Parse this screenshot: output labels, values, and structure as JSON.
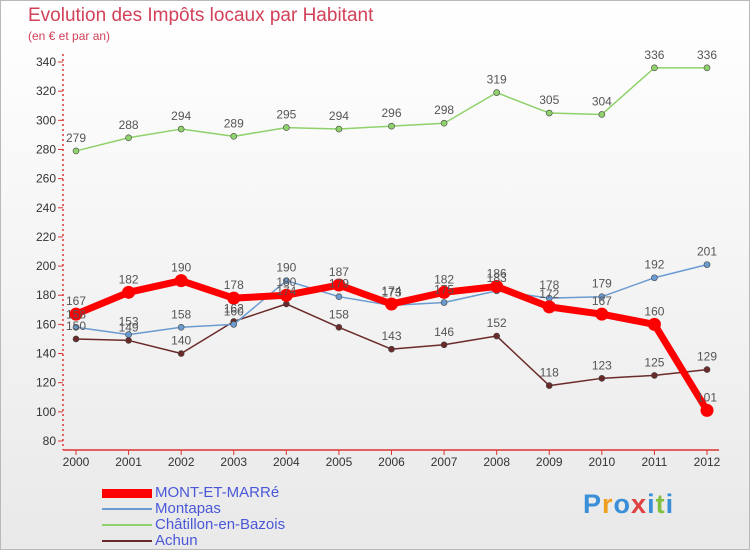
{
  "header": {
    "title": "Evolution des Impôts locaux par Habitant",
    "subtitle": "(en € et par an)"
  },
  "chart_data": {
    "type": "line",
    "title": "Evolution des Impôts locaux par Habitant",
    "subtitle": "(en € et par an)",
    "xlabel": "",
    "ylabel": "",
    "x": [
      "2000",
      "2001",
      "2002",
      "2003",
      "2004",
      "2005",
      "2006",
      "2007",
      "2008",
      "2009",
      "2010",
      "2011",
      "2012"
    ],
    "ylim": [
      80,
      340
    ],
    "yticks": [
      "80",
      "100",
      "120",
      "140",
      "160",
      "180",
      "200",
      "220",
      "240",
      "260",
      "280",
      "300",
      "320",
      "340"
    ],
    "grid": false,
    "legend_position": "bottom-left",
    "series": [
      {
        "name": "MONT-ET-MARRé",
        "color": "#ff0000",
        "values": [
          167,
          182,
          190,
          178,
          180,
          187,
          174,
          182,
          186,
          172,
          167,
          160,
          101
        ],
        "labels": [
          "167",
          "182",
          "190",
          "178",
          "180",
          "187",
          "174",
          "182",
          "186",
          "172",
          "167",
          "160",
          "101"
        ]
      },
      {
        "name": "Montapas",
        "color": "#6a9bd1",
        "values": [
          158,
          153,
          158,
          160,
          190,
          179,
          173,
          175,
          183,
          178,
          179,
          192,
          201
        ],
        "labels": [
          "158",
          "153",
          "158",
          "160",
          "190",
          "179",
          "173",
          "175",
          "183",
          "178",
          "179",
          "192",
          "201"
        ]
      },
      {
        "name": "Châtillon-en-Bazois",
        "color": "#8fd16a",
        "values": [
          279,
          288,
          294,
          289,
          295,
          294,
          296,
          298,
          319,
          305,
          304,
          336,
          336
        ],
        "labels": [
          "279",
          "288",
          "294",
          "289",
          "295",
          "294",
          "296",
          "298",
          "319",
          "305",
          "304",
          "336",
          "336"
        ]
      },
      {
        "name": "Achun",
        "color": "#6b2a2a",
        "values": [
          150,
          149,
          140,
          162,
          174,
          158,
          143,
          146,
          152,
          118,
          123,
          125,
          129
        ],
        "labels": [
          "150",
          "149",
          "140",
          "162",
          "174",
          "158",
          "143",
          "146",
          "152",
          "118",
          "123",
          "125",
          "129"
        ]
      }
    ]
  },
  "branding": {
    "logo_letters": [
      "P",
      "r",
      "o",
      "x",
      "i",
      "t",
      "i"
    ],
    "logo_colors": [
      "#3a8fd8",
      "#f0a020",
      "#3a8fd8",
      "#e04040",
      "#3a8fd8",
      "#80c040",
      "#3a8fd8"
    ]
  }
}
